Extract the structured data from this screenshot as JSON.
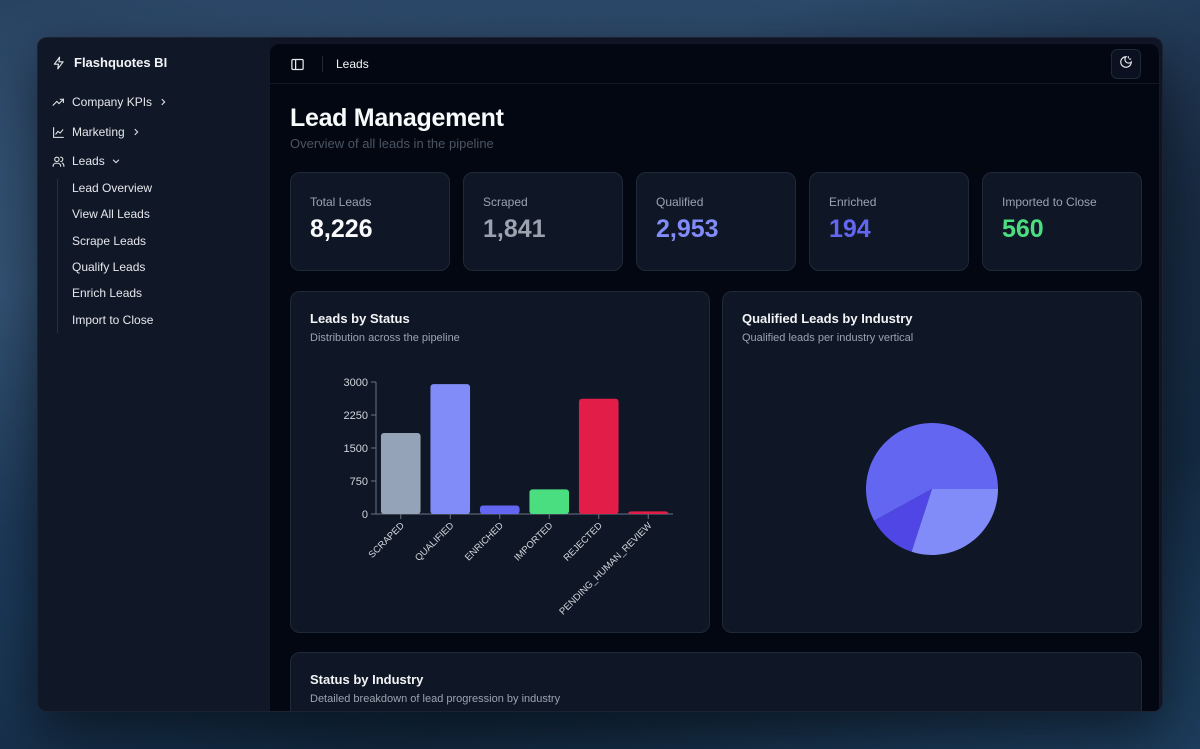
{
  "app": {
    "name": "Flashquotes BI"
  },
  "sidebar": {
    "items": [
      {
        "label": "Company KPIs"
      },
      {
        "label": "Marketing"
      },
      {
        "label": "Leads"
      }
    ],
    "leads_subitems": [
      "Lead Overview",
      "View All Leads",
      "Scrape Leads",
      "Qualify Leads",
      "Enrich Leads",
      "Import to Close"
    ]
  },
  "header": {
    "breadcrumb": "Leads"
  },
  "page": {
    "title": "Lead Management",
    "subtitle": "Overview of all leads in the pipeline"
  },
  "stats": [
    {
      "label": "Total Leads",
      "value": "8,226",
      "color": "#f9fafb"
    },
    {
      "label": "Scraped",
      "value": "1,841",
      "color": "#9ca3af"
    },
    {
      "label": "Qualified",
      "value": "2,953",
      "color": "#818cf8"
    },
    {
      "label": "Enriched",
      "value": "194",
      "color": "#6366f1"
    },
    {
      "label": "Imported to Close",
      "value": "560",
      "color": "#4ade80"
    }
  ],
  "panels": {
    "status": {
      "title": "Leads by Status",
      "subtitle": "Distribution across the pipeline"
    },
    "industry": {
      "title": "Qualified Leads by Industry",
      "subtitle": "Qualified leads per industry vertical"
    },
    "breakdown": {
      "title": "Status by Industry",
      "subtitle": "Detailed breakdown of lead progression by industry"
    }
  },
  "chart_data": [
    {
      "type": "bar",
      "title": "Leads by Status",
      "categories": [
        "SCRAPED",
        "QUALIFIED",
        "ENRICHED",
        "IMPORTED",
        "REJECTED",
        "PENDING_HUMAN_REVIEW"
      ],
      "values": [
        1841,
        2953,
        194,
        560,
        2620,
        60
      ],
      "colors": [
        "#94a3b8",
        "#818cf8",
        "#6366f1",
        "#4ade80",
        "#e11d48",
        "#e11d48"
      ],
      "yticks": [
        "0",
        "750",
        "1500",
        "2250",
        "3000"
      ],
      "ylim": [
        0,
        3000
      ]
    },
    {
      "type": "pie",
      "title": "Qualified Leads by Industry",
      "values": [
        0.58,
        0.12,
        0.3
      ],
      "colors": [
        "#6366f1",
        "#4f46e5",
        "#818cf8"
      ]
    }
  ]
}
